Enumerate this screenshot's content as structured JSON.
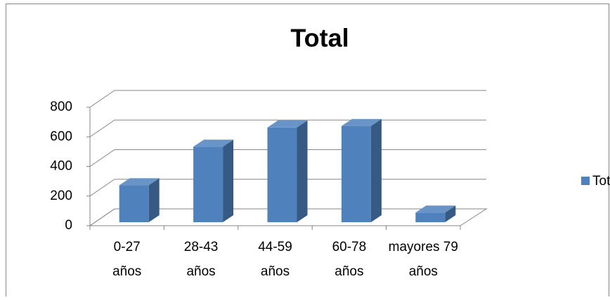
{
  "chart_data": {
    "type": "bar3d",
    "title": "Total",
    "categories": [
      "0-27 años",
      "28-43 años",
      "44-59 años",
      "60-78 años",
      "mayores 79 años"
    ],
    "series": [
      {
        "name": "Total",
        "color": "#4f81bd",
        "values": [
          250,
          510,
          640,
          650,
          65
        ]
      }
    ],
    "ylim": [
      0,
      800
    ],
    "yticks": [
      0,
      200,
      400,
      600,
      800
    ],
    "grid": true,
    "legend": "right"
  }
}
